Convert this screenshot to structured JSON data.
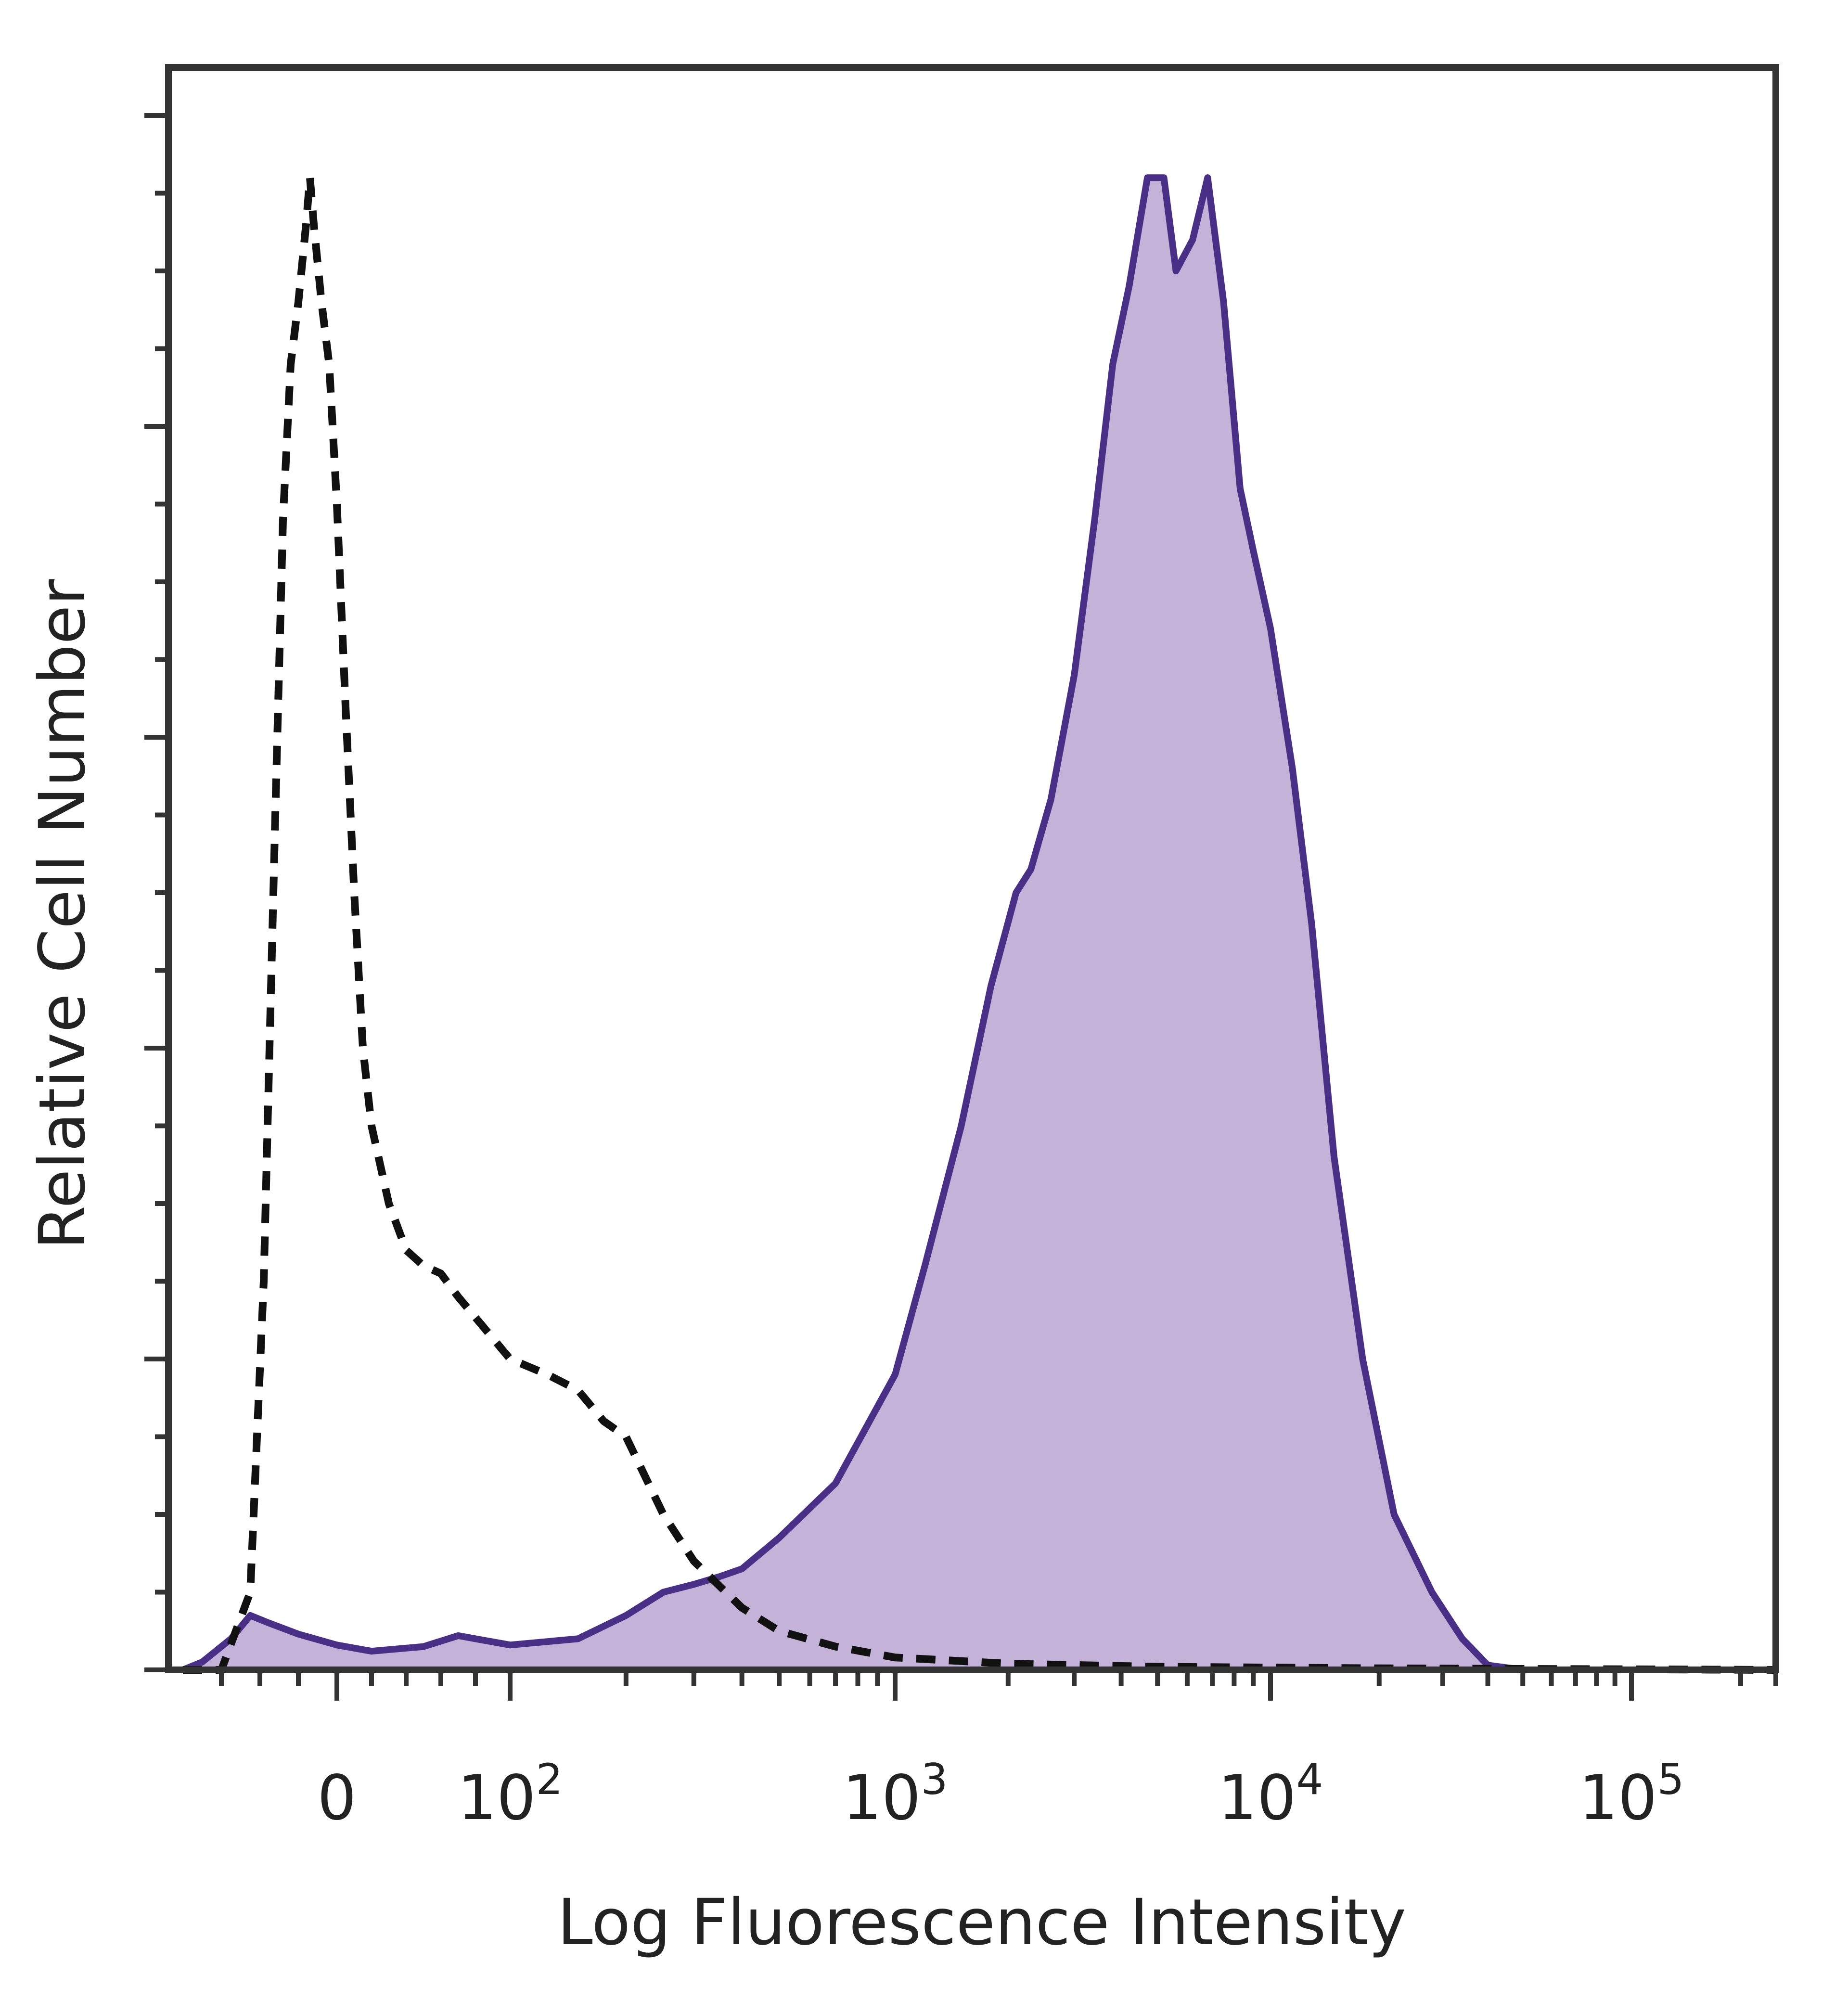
{
  "chart_data": {
    "type": "area",
    "title": "",
    "xlabel": "Log Fluorescence Intensity",
    "ylabel": "Relative Cell Number",
    "x_scale": "biexponential",
    "xlim": [
      -80,
      250000
    ],
    "ylim": [
      0,
      100
    ],
    "grid": false,
    "legend": "none",
    "x_tick_labels": [
      {
        "value": 0,
        "base": "0",
        "exp": ""
      },
      {
        "value": 100,
        "base": "10",
        "exp": "2"
      },
      {
        "value": 1000,
        "base": "10",
        "exp": "3"
      },
      {
        "value": 10000,
        "base": "10",
        "exp": "4"
      },
      {
        "value": 100000,
        "base": "10",
        "exp": "5"
      }
    ],
    "series": [
      {
        "style": "dashed",
        "color": "#111111",
        "fill": "none",
        "points": [
          [
            -80,
            0
          ],
          [
            -60,
            0
          ],
          [
            -45,
            5
          ],
          [
            -38,
            25
          ],
          [
            -32,
            55
          ],
          [
            -28,
            74
          ],
          [
            -24,
            84
          ],
          [
            -20,
            88
          ],
          [
            -16,
            93
          ],
          [
            -14,
            96
          ],
          [
            -12,
            93
          ],
          [
            -8,
            88
          ],
          [
            -4,
            84
          ],
          [
            0,
            75
          ],
          [
            5,
            62
          ],
          [
            10,
            50
          ],
          [
            15,
            40
          ],
          [
            20,
            35
          ],
          [
            30,
            30
          ],
          [
            40,
            27
          ],
          [
            50,
            26
          ],
          [
            60,
            25.5
          ],
          [
            70,
            24
          ],
          [
            85,
            22
          ],
          [
            100,
            20
          ],
          [
            125,
            19
          ],
          [
            150,
            18
          ],
          [
            175,
            16
          ],
          [
            200,
            15
          ],
          [
            250,
            10
          ],
          [
            300,
            7
          ],
          [
            400,
            4
          ],
          [
            500,
            2.5
          ],
          [
            700,
            1.5
          ],
          [
            1000,
            0.8
          ],
          [
            2000,
            0.4
          ],
          [
            5000,
            0.2
          ],
          [
            20000,
            0.1
          ],
          [
            250000,
            0
          ]
        ]
      },
      {
        "style": "solid",
        "color": "#4a2f86",
        "fill": "#c5b2d8",
        "points": [
          [
            -80,
            0
          ],
          [
            -70,
            0.5
          ],
          [
            -55,
            2
          ],
          [
            -45,
            3.5
          ],
          [
            -35,
            3
          ],
          [
            -20,
            2.3
          ],
          [
            0,
            1.6
          ],
          [
            20,
            1.2
          ],
          [
            50,
            1.5
          ],
          [
            70,
            2.2
          ],
          [
            100,
            1.6
          ],
          [
            150,
            2
          ],
          [
            200,
            3.5
          ],
          [
            250,
            5
          ],
          [
            300,
            5.5
          ],
          [
            350,
            6
          ],
          [
            400,
            6.5
          ],
          [
            500,
            8.5
          ],
          [
            700,
            12
          ],
          [
            1000,
            19
          ],
          [
            1200,
            26
          ],
          [
            1500,
            35
          ],
          [
            1800,
            44
          ],
          [
            2100,
            50
          ],
          [
            2300,
            51.5
          ],
          [
            2600,
            56
          ],
          [
            3000,
            64
          ],
          [
            3400,
            74
          ],
          [
            3800,
            84
          ],
          [
            4200,
            89
          ],
          [
            4700,
            96
          ],
          [
            5200,
            96
          ],
          [
            5600,
            90
          ],
          [
            6200,
            92
          ],
          [
            6800,
            96
          ],
          [
            7500,
            88
          ],
          [
            8300,
            76
          ],
          [
            9000,
            72
          ],
          [
            10000,
            67
          ],
          [
            11500,
            58
          ],
          [
            13000,
            48
          ],
          [
            15000,
            33
          ],
          [
            18000,
            20
          ],
          [
            22000,
            10
          ],
          [
            28000,
            5
          ],
          [
            34000,
            2
          ],
          [
            40000,
            0.3
          ],
          [
            50000,
            0
          ],
          [
            250000,
            0
          ]
        ]
      }
    ]
  }
}
